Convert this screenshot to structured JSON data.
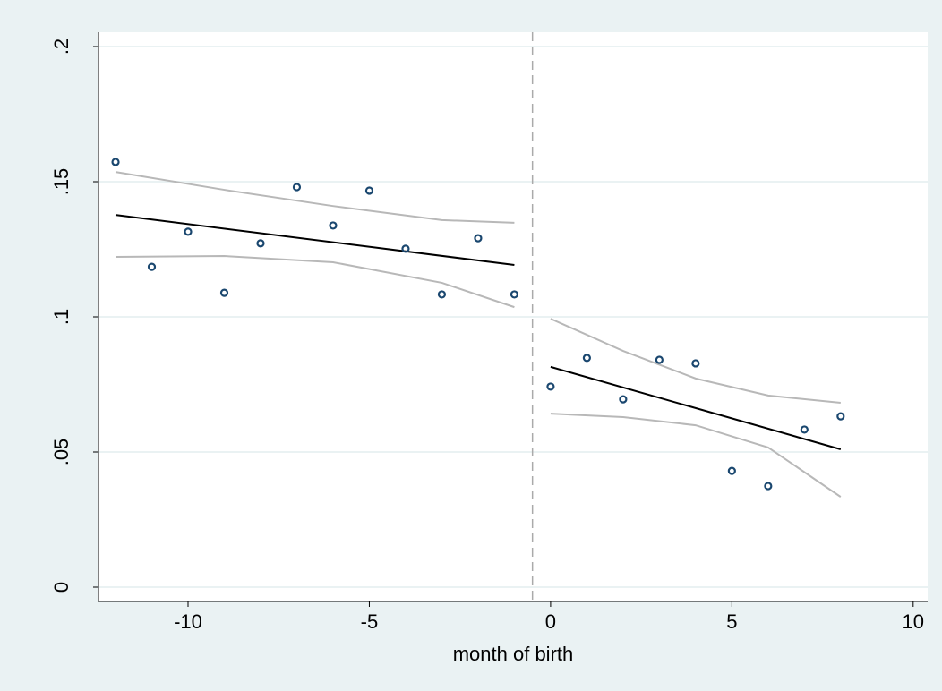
{
  "chart_data": {
    "type": "scatter",
    "x_label": "month of birth",
    "xlim": [
      -12.47,
      10.4
    ],
    "xticks": [
      -10,
      -5,
      0,
      5,
      10
    ],
    "ylim": [
      -0.0053,
      0.2053
    ],
    "yticks": [
      0,
      {
        "value": 0.05,
        "label": ".05"
      },
      {
        "value": 0.1,
        "label": ".1"
      },
      {
        "value": 0.15,
        "label": ".15"
      },
      {
        "value": 0.2,
        "label": ".2"
      }
    ],
    "grid": true,
    "xline": -0.5,
    "series": [
      {
        "style": "marker",
        "color": "#1a476f",
        "x": [
          -12,
          -11,
          -10,
          -9,
          -8,
          -7,
          -6,
          -5,
          -4,
          -3,
          -2,
          -1
        ],
        "values": [
          0.1573,
          0.1185,
          0.1315,
          0.1089,
          0.1272,
          0.148,
          0.1338,
          0.1467,
          0.1252,
          0.1083,
          0.1291,
          0.1083
        ]
      },
      {
        "style": "marker",
        "color": "#1a476f",
        "x": [
          0,
          1,
          2,
          3,
          4,
          5,
          6,
          7,
          8
        ],
        "values": [
          0.0742,
          0.0848,
          0.0695,
          0.0841,
          0.0828,
          0.043,
          0.0374,
          0.0583,
          0.0632
        ]
      },
      {
        "style": "line",
        "color": "#b8b8b8",
        "x": [
          -12,
          -9,
          -6,
          -3,
          -1
        ],
        "values": [
          0.1536,
          0.147,
          0.141,
          0.1358,
          0.1348
        ]
      },
      {
        "style": "line",
        "color": "#b8b8b8",
        "x": [
          -12,
          -9,
          -6,
          -3,
          -1
        ],
        "values": [
          0.1222,
          0.1225,
          0.1202,
          0.1126,
          0.1036
        ]
      },
      {
        "style": "line",
        "color": "#b8b8b8",
        "x": [
          0,
          2,
          4,
          6,
          8
        ],
        "values": [
          0.0993,
          0.0874,
          0.0772,
          0.0709,
          0.0682
        ]
      },
      {
        "style": "line",
        "color": "#b8b8b8",
        "x": [
          0,
          2,
          4,
          6,
          8
        ],
        "values": [
          0.0642,
          0.0629,
          0.0599,
          0.0517,
          0.0334
        ]
      },
      {
        "style": "line",
        "color": "#000000",
        "x": [
          -12,
          -1
        ],
        "values": [
          0.1377,
          0.1192
        ]
      },
      {
        "style": "line",
        "color": "#000000",
        "x": [
          0,
          8
        ],
        "values": [
          0.0815,
          0.051
        ]
      }
    ]
  }
}
